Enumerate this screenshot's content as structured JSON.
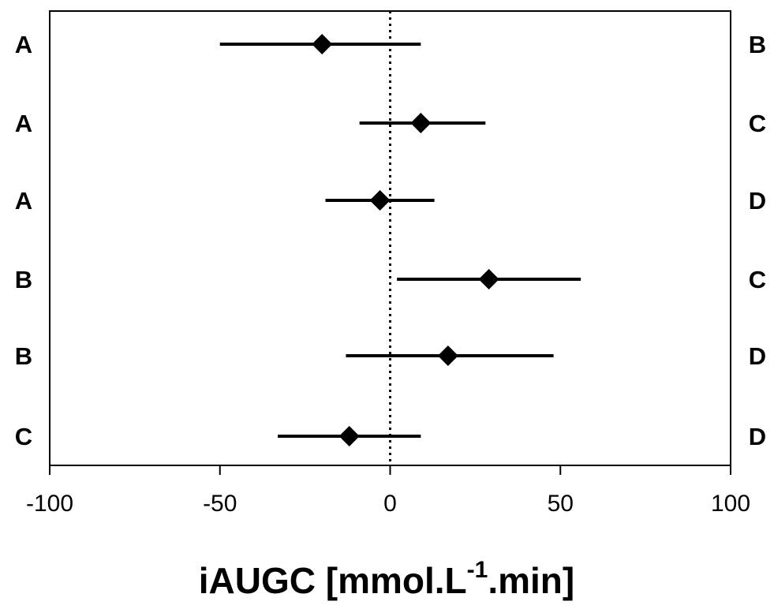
{
  "chart_data": {
    "type": "forest",
    "xlabel": {
      "main": "iAUGC [mmol.L",
      "superscript": "-1",
      "end": ".min]"
    },
    "xlim": [
      -100,
      100
    ],
    "xticks": [
      {
        "value": -100,
        "label": "-100"
      },
      {
        "value": -50,
        "label": "-50"
      },
      {
        "value": 0,
        "label": "0"
      },
      {
        "value": 50,
        "label": "50"
      },
      {
        "value": 100,
        "label": "100"
      }
    ],
    "reference_line": {
      "x": 0,
      "style": "dotted"
    },
    "rows": [
      {
        "left": "A",
        "right": "B",
        "estimate": -20,
        "lower": -50,
        "upper": 9
      },
      {
        "left": "A",
        "right": "C",
        "estimate": 9,
        "lower": -9,
        "upper": 28
      },
      {
        "left": "A",
        "right": "D",
        "estimate": -3,
        "lower": -19,
        "upper": 13
      },
      {
        "left": "B",
        "right": "C",
        "estimate": 29,
        "lower": 2,
        "upper": 56
      },
      {
        "left": "B",
        "right": "D",
        "estimate": 17,
        "lower": -13,
        "upper": 48
      },
      {
        "left": "C",
        "right": "D",
        "estimate": -12,
        "lower": -33,
        "upper": 9
      }
    ],
    "marker": "diamond",
    "colors": {
      "marks": "#000000",
      "background": "#ffffff"
    }
  }
}
